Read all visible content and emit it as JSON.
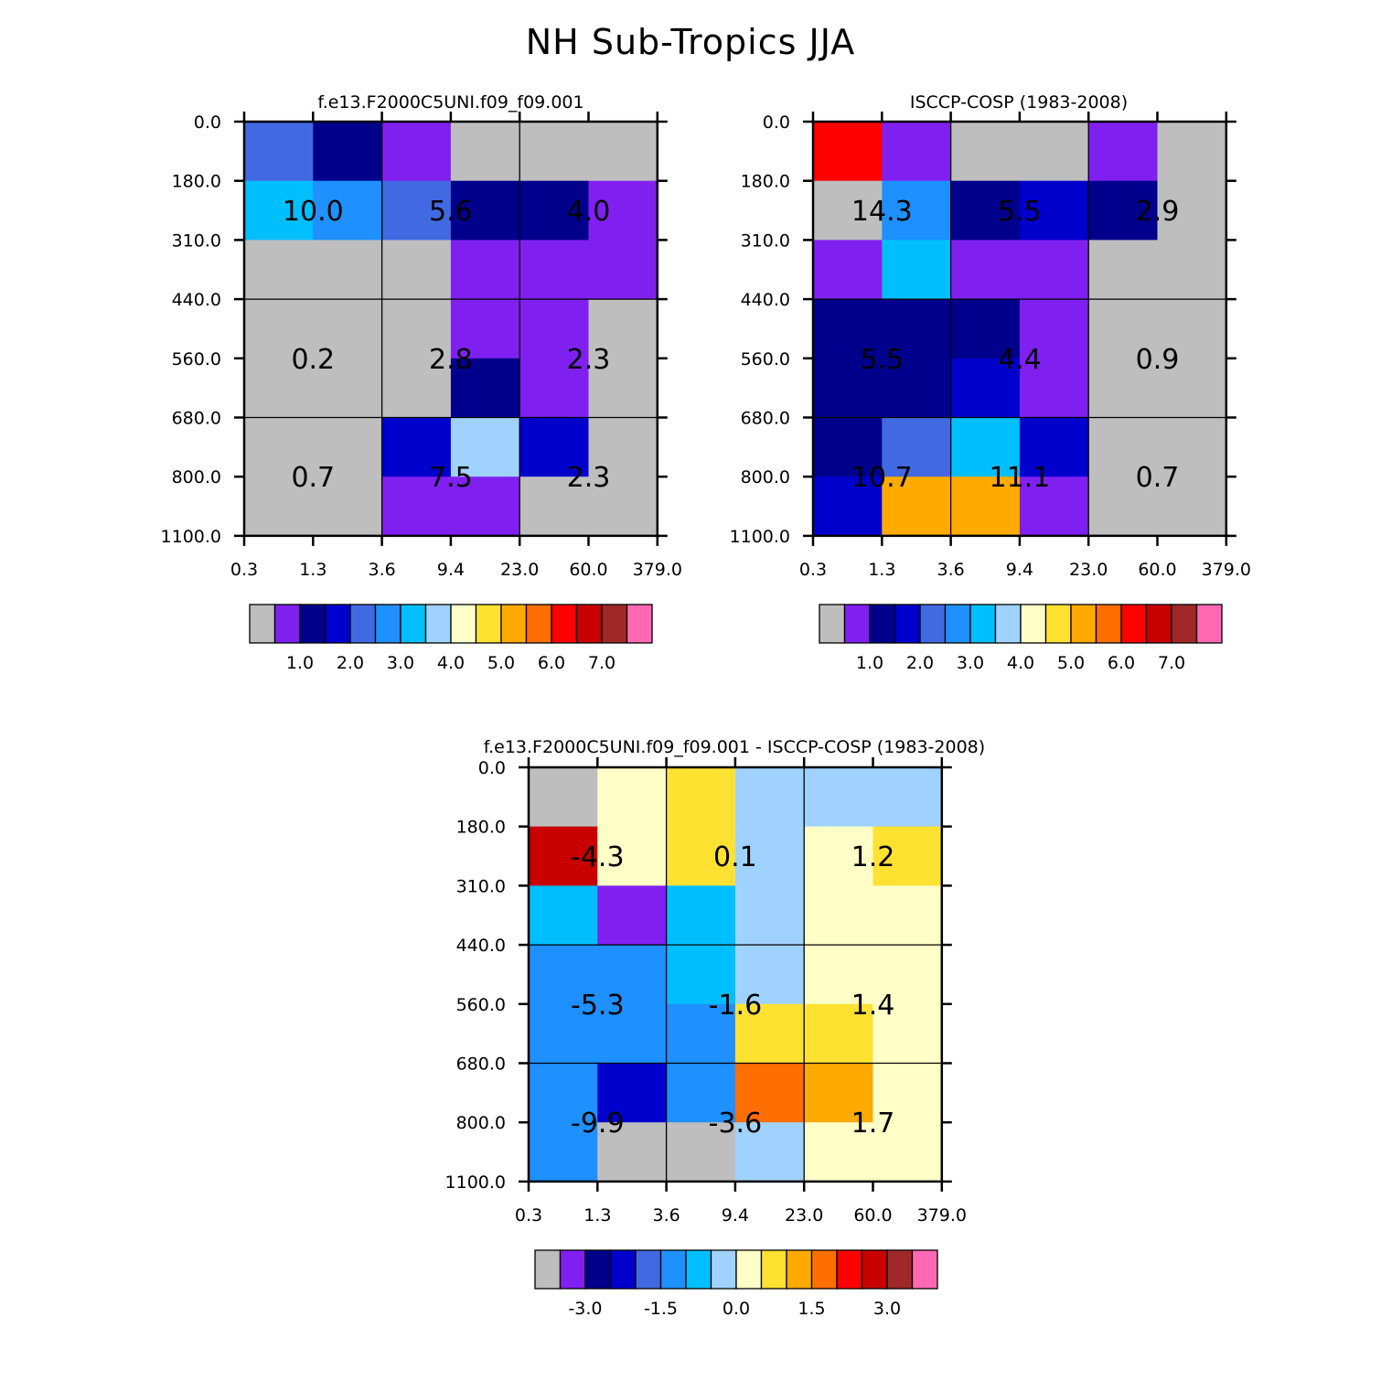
{
  "title": "NH Sub-Tropics JJA",
  "colors": {
    "abs_palette": [
      "#bebebe",
      "#8020f0",
      "#00008c",
      "#0000cd",
      "#4169e1",
      "#1e90ff",
      "#00bfff",
      "#a0d2ff",
      "#ffffc8",
      "#ffe132",
      "#ffaa00",
      "#ff6e00",
      "#ff0000",
      "#c80000",
      "#a02828",
      "#ff69b4"
    ],
    "diff_palette": [
      "#bebebe",
      "#8020f0",
      "#00008c",
      "#0000cd",
      "#4169e1",
      "#1e90ff",
      "#00bfff",
      "#a0d2ff",
      "#ffffc8",
      "#ffe132",
      "#ffaa00",
      "#ff6e00",
      "#ff0000",
      "#c80000",
      "#a02828",
      "#ff69b4"
    ]
  },
  "chart_data": [
    {
      "type": "heatmap",
      "title": "f.e13.F2000C5UNI.f09_f09.001",
      "x_tick_labels": [
        "0.3",
        "1.3",
        "3.6",
        "9.4",
        "23.0",
        "60.0",
        "379.0"
      ],
      "y_tick_labels": [
        "0.0",
        "180.0",
        "310.0",
        "440.0",
        "560.0",
        "680.0",
        "800.0",
        "1100.0"
      ],
      "cell_color_index": [
        [
          4,
          2,
          1,
          0,
          0,
          0
        ],
        [
          6,
          5,
          4,
          2,
          2,
          1
        ],
        [
          0,
          0,
          0,
          1,
          1,
          1
        ],
        [
          0,
          0,
          0,
          1,
          1,
          0
        ],
        [
          0,
          0,
          0,
          2,
          1,
          0
        ],
        [
          0,
          0,
          3,
          7,
          3,
          0
        ],
        [
          0,
          0,
          1,
          1,
          0,
          0
        ]
      ],
      "box_values": [
        [
          "10.0",
          "5.6",
          "4.0"
        ],
        [
          "0.2",
          "2.8",
          "2.3"
        ],
        [
          "0.7",
          "7.5",
          "2.3"
        ]
      ],
      "colorbar_labels": [
        "1.0",
        "2.0",
        "3.0",
        "4.0",
        "5.0",
        "6.0",
        "7.0"
      ]
    },
    {
      "type": "heatmap",
      "title": "ISCCP-COSP (1983-2008)",
      "x_tick_labels": [
        "0.3",
        "1.3",
        "3.6",
        "9.4",
        "23.0",
        "60.0",
        "379.0"
      ],
      "y_tick_labels": [
        "0.0",
        "180.0",
        "310.0",
        "440.0",
        "560.0",
        "680.0",
        "800.0",
        "1100.0"
      ],
      "cell_color_index": [
        [
          12,
          1,
          0,
          0,
          1,
          0
        ],
        [
          0,
          5,
          2,
          3,
          2,
          0
        ],
        [
          1,
          6,
          1,
          1,
          0,
          0
        ],
        [
          2,
          2,
          2,
          1,
          0,
          0
        ],
        [
          2,
          2,
          3,
          1,
          0,
          0
        ],
        [
          2,
          4,
          6,
          3,
          0,
          0
        ],
        [
          3,
          10,
          10,
          1,
          0,
          0
        ]
      ],
      "box_values": [
        [
          "14.3",
          "5.5",
          "2.9"
        ],
        [
          "5.5",
          "4.4",
          "0.9"
        ],
        [
          "10.7",
          "11.1",
          "0.7"
        ]
      ],
      "colorbar_labels": [
        "1.0",
        "2.0",
        "3.0",
        "4.0",
        "5.0",
        "6.0",
        "7.0"
      ]
    },
    {
      "type": "heatmap",
      "title": "f.e13.F2000C5UNI.f09_f09.001 - ISCCP-COSP (1983-2008)",
      "x_tick_labels": [
        "0.3",
        "1.3",
        "3.6",
        "9.4",
        "23.0",
        "60.0",
        "379.0"
      ],
      "y_tick_labels": [
        "0.0",
        "180.0",
        "310.0",
        "440.0",
        "560.0",
        "680.0",
        "800.0",
        "1100.0"
      ],
      "cell_color_index": [
        [
          0,
          8,
          9,
          7,
          7,
          7
        ],
        [
          13,
          8,
          9,
          7,
          8,
          9
        ],
        [
          6,
          1,
          6,
          7,
          8,
          8
        ],
        [
          5,
          5,
          6,
          7,
          8,
          8
        ],
        [
          5,
          5,
          5,
          9,
          9,
          8
        ],
        [
          5,
          3,
          5,
          11,
          10,
          8
        ],
        [
          5,
          0,
          0,
          7,
          8,
          8
        ]
      ],
      "box_values": [
        [
          "-4.3",
          "0.1",
          "1.2"
        ],
        [
          "-5.3",
          "-1.6",
          "1.4"
        ],
        [
          "-9.9",
          "-3.6",
          "1.7"
        ]
      ],
      "colorbar_labels": [
        "-3.0",
        "-1.5",
        "0.0",
        "1.5",
        "3.0"
      ]
    }
  ]
}
